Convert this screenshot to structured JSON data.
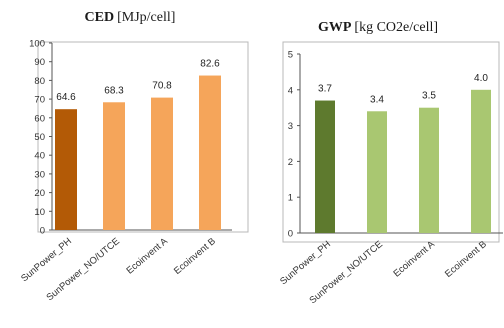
{
  "chart_data": [
    {
      "type": "bar",
      "title_bold": "CED",
      "title_unit": "[MJp/cell]",
      "categories": [
        "SunPower_PH",
        "SunPower_NO/UTCE",
        "Ecoinvent A",
        "Ecoinvent B"
      ],
      "values": [
        64.6,
        68.3,
        70.8,
        82.6
      ],
      "data_labels": [
        "64.6",
        "68.3",
        "70.8",
        "82.6"
      ],
      "ylim": [
        0,
        100
      ],
      "yticks": [
        0,
        10,
        20,
        30,
        40,
        50,
        60,
        70,
        80,
        90,
        100
      ],
      "bar_colors": [
        "#b35a06",
        "#f5a55a",
        "#f5a55a",
        "#f5a55a"
      ],
      "grid": false
    },
    {
      "type": "bar",
      "title_bold": "GWP",
      "title_unit": "[kg CO2e/cell]",
      "categories": [
        "SunPower_PH",
        "SunPower_NO/UTCE",
        "Ecoinvent A",
        "Ecoinvent B"
      ],
      "values": [
        3.7,
        3.4,
        3.5,
        4.0
      ],
      "data_labels": [
        "3.7",
        "3.4",
        "3.5",
        "4.0"
      ],
      "ylim": [
        0,
        5
      ],
      "yticks": [
        0,
        1,
        2,
        3,
        4,
        5
      ],
      "bar_colors": [
        "#5e7a2e",
        "#a9c771",
        "#a9c771",
        "#a9c771"
      ],
      "grid": false
    }
  ]
}
